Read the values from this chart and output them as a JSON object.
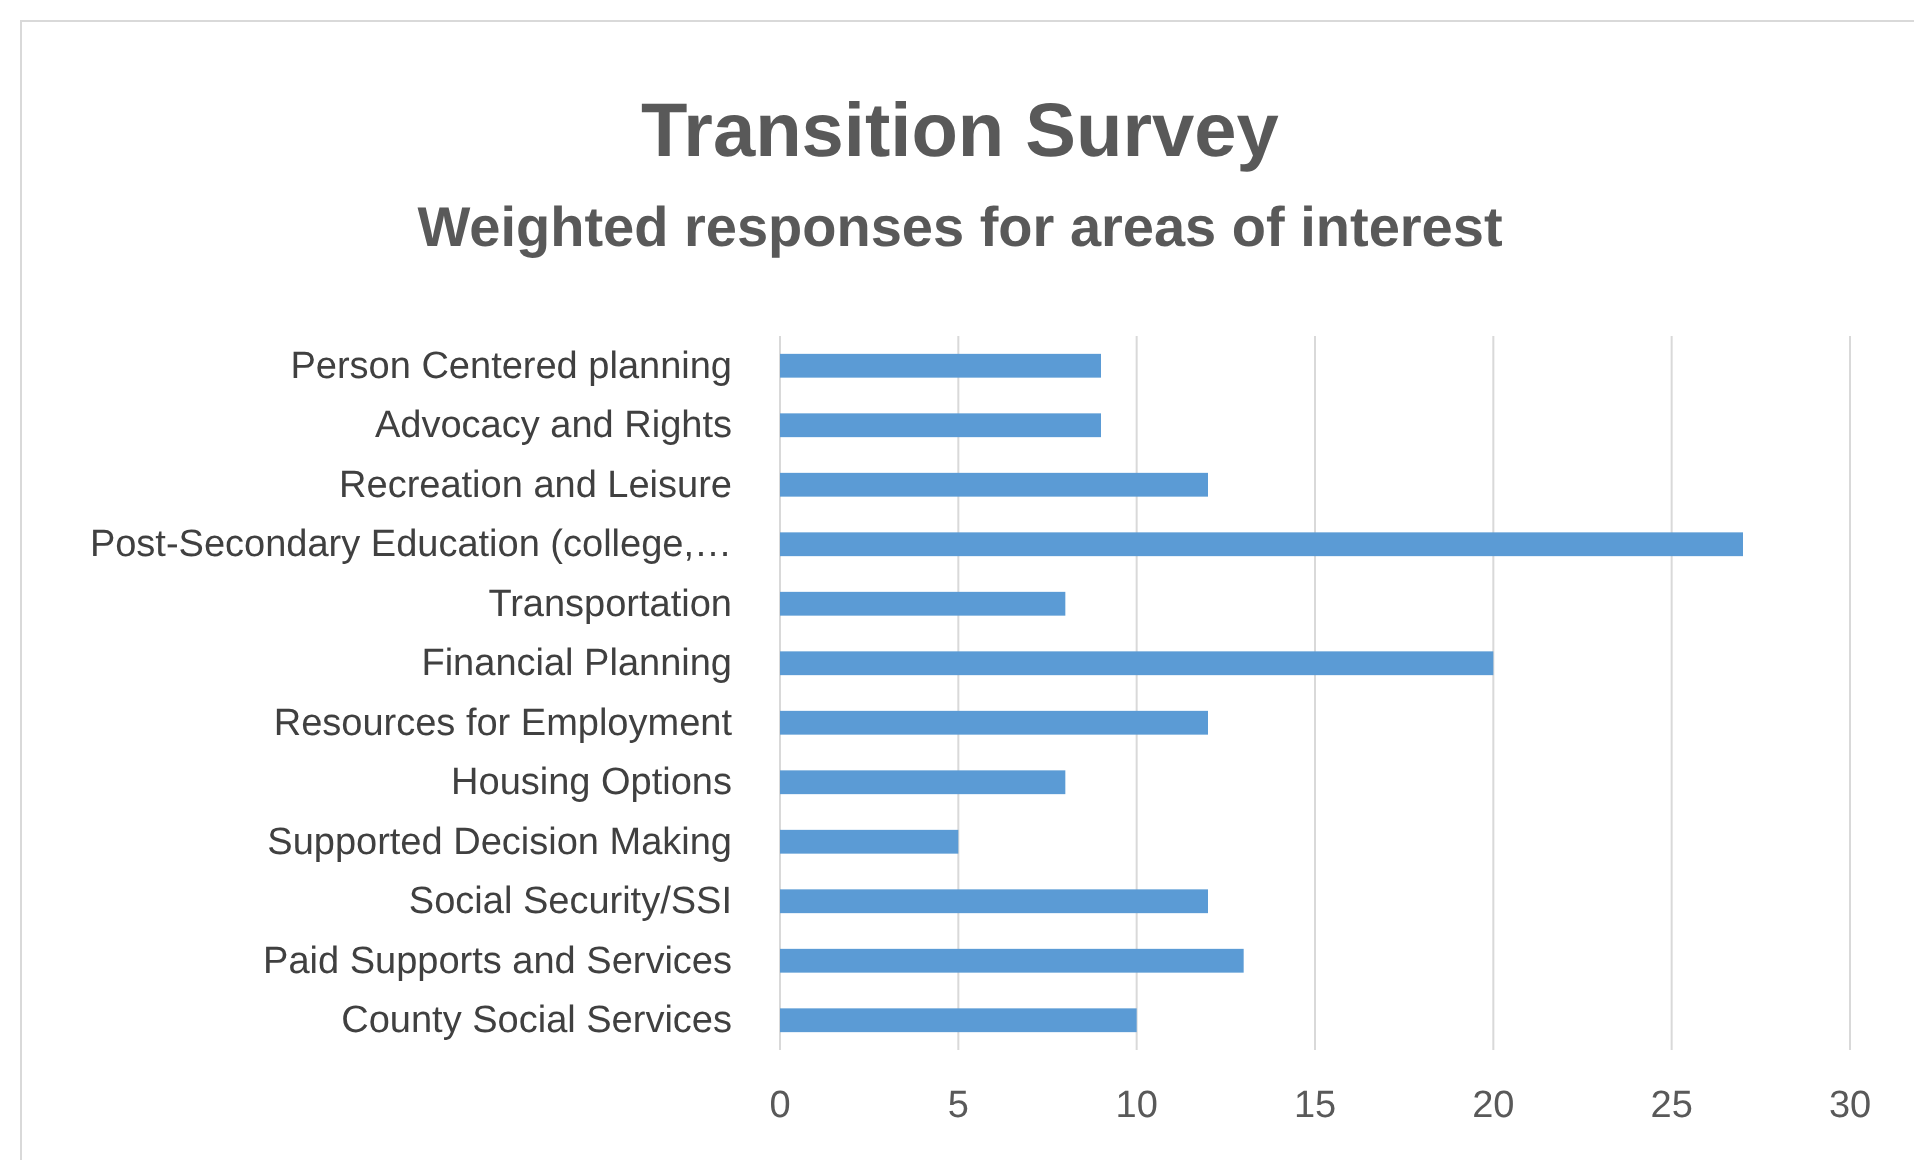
{
  "chart_data": {
    "type": "bar",
    "orientation": "horizontal",
    "title": "Transition Survey",
    "subtitle": "Weighted responses for areas of interest",
    "categories": [
      "Person Centered planning",
      "Advocacy and Rights",
      "Recreation and Leisure",
      "Post-Secondary Education (college,…",
      "Transportation",
      "Financial Planning",
      "Resources for Employment",
      "Housing Options",
      "Supported Decision Making",
      "Social Security/SSI",
      "Paid Supports and Services",
      "County Social Services"
    ],
    "values": [
      9,
      9,
      12,
      27,
      8,
      20,
      12,
      8,
      5,
      12,
      13,
      10
    ],
    "color": "#5b9bd5",
    "xlim": [
      0,
      30
    ],
    "xticks": [
      0,
      5,
      10,
      15,
      20,
      25,
      30
    ],
    "grid": "x"
  }
}
